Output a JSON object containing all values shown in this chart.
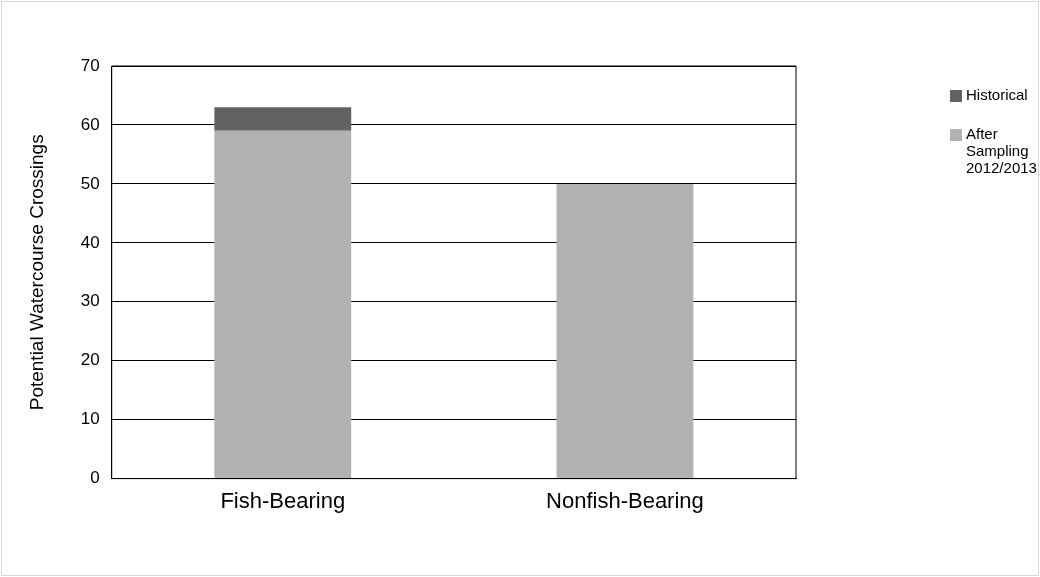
{
  "chart_data": {
    "type": "bar",
    "stacked": true,
    "ylabel": "Potential Watercourse Crossings",
    "categories": [
      "Fish-Bearing",
      "Nonfish-Bearing"
    ],
    "series": [
      {
        "name": "After Sampling 2012/2013",
        "color": "#b2b2b2",
        "values": [
          59,
          50
        ]
      },
      {
        "name": "Historical",
        "color": "#636363",
        "values": [
          4,
          0
        ]
      }
    ],
    "ylim": [
      0,
      70
    ],
    "yticks": [
      0,
      10,
      20,
      30,
      40,
      50,
      60,
      70
    ],
    "grid": "y",
    "legend": "right"
  }
}
